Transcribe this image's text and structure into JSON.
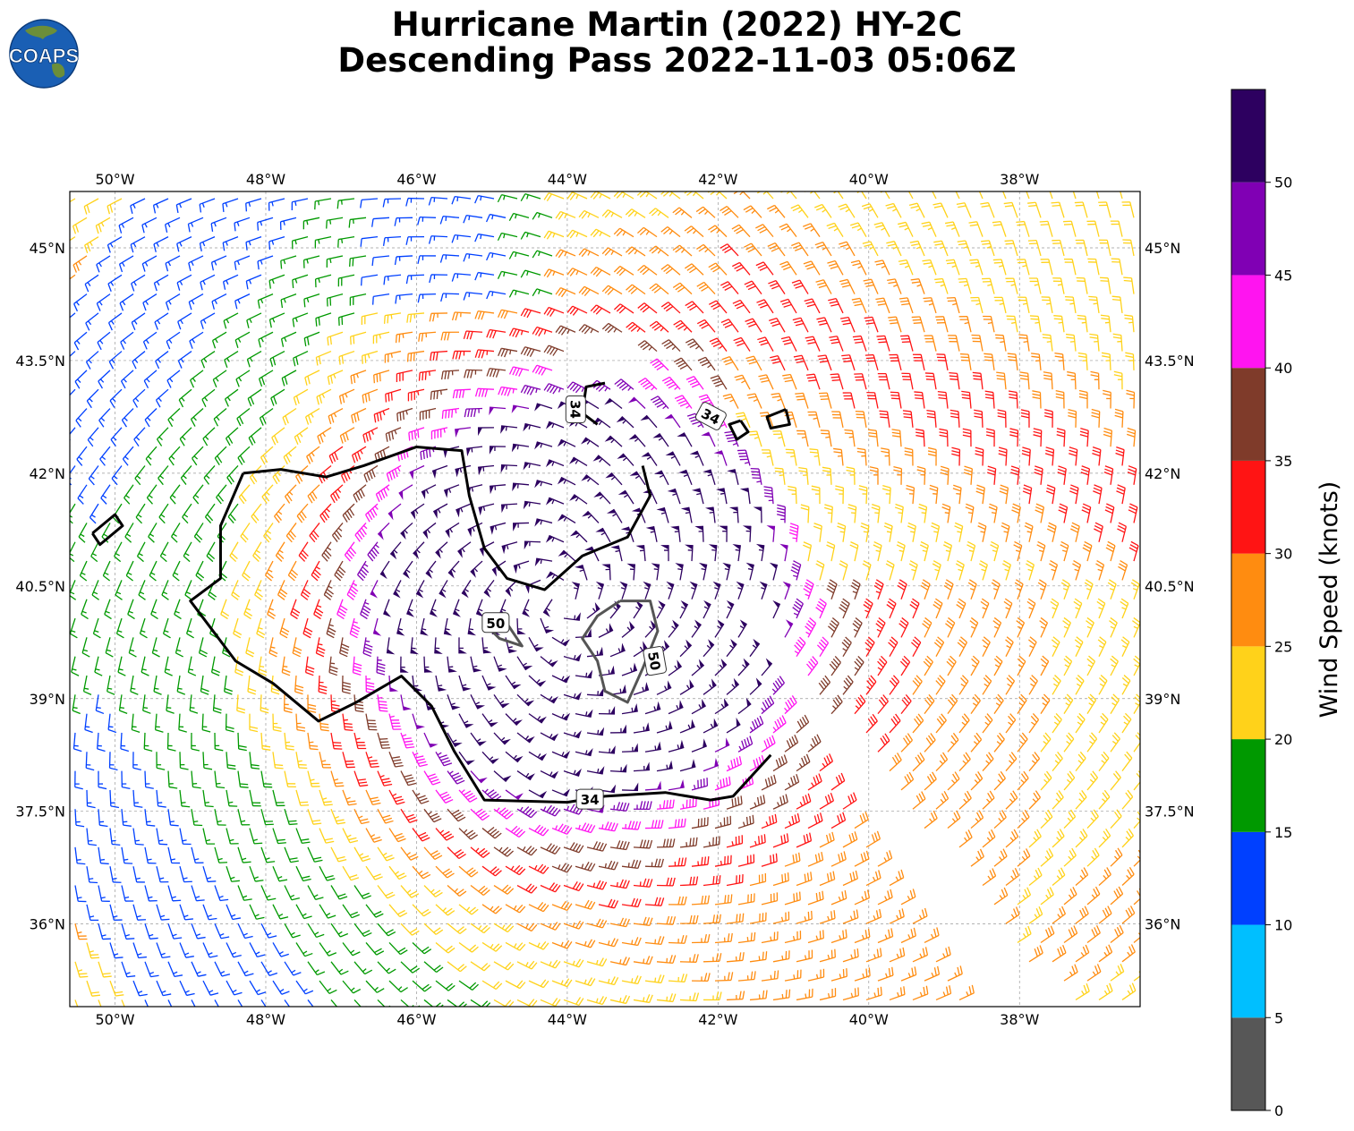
{
  "title": {
    "line1": "Hurricane Martin (2022) HY-2C",
    "line2": "Descending Pass 2022-11-03 05:06Z"
  },
  "logo": {
    "text": "COAPS",
    "icon": "globe-logo-icon",
    "colors": {
      "ocean": "#1a5fb4",
      "land": "#6b8e3a",
      "text": "#ffffff"
    }
  },
  "map": {
    "lon_range": [
      -50.6,
      -36.4
    ],
    "lat_range": [
      34.9,
      45.75
    ],
    "gridlines": true,
    "lon_ticks": [
      {
        "value": -50,
        "label": "50°W"
      },
      {
        "value": -48,
        "label": "48°W"
      },
      {
        "value": -46,
        "label": "46°W"
      },
      {
        "value": -44,
        "label": "44°W"
      },
      {
        "value": -42,
        "label": "42°W"
      },
      {
        "value": -40,
        "label": "40°W"
      },
      {
        "value": -38,
        "label": "38°W"
      }
    ],
    "lat_ticks": [
      {
        "value": 45,
        "label": "45°N"
      },
      {
        "value": 43.5,
        "label": "43.5°N"
      },
      {
        "value": 42,
        "label": "42°N"
      },
      {
        "value": 40.5,
        "label": "40.5°N"
      },
      {
        "value": 39,
        "label": "39°N"
      },
      {
        "value": 37.5,
        "label": "37.5°N"
      },
      {
        "value": 36,
        "label": "36°N"
      }
    ],
    "storm_center": {
      "lon": -44.1,
      "lat": 40.3
    },
    "contours": [
      {
        "level": 34,
        "color": "#000000",
        "label": "34",
        "path": [
          [
            -48.3,
            42.0
          ],
          [
            -47.8,
            42.05
          ],
          [
            -47.2,
            41.95
          ],
          [
            -46.7,
            42.1
          ],
          [
            -46.0,
            42.35
          ],
          [
            -45.4,
            42.3
          ],
          [
            -45.3,
            41.7
          ],
          [
            -45.1,
            41.0
          ],
          [
            -44.8,
            40.6
          ],
          [
            -44.3,
            40.45
          ],
          [
            -43.8,
            40.9
          ],
          [
            -43.2,
            41.15
          ],
          [
            -42.9,
            41.7
          ],
          [
            -43.0,
            42.1
          ]
        ]
      },
      {
        "level": 34,
        "color": "#000000",
        "label": "34",
        "path": [
          [
            -48.3,
            42.0
          ],
          [
            -48.6,
            41.3
          ],
          [
            -48.6,
            40.6
          ],
          [
            -49.0,
            40.3
          ],
          [
            -48.7,
            39.9
          ],
          [
            -48.4,
            39.5
          ],
          [
            -47.9,
            39.2
          ],
          [
            -47.3,
            38.7
          ],
          [
            -46.8,
            38.95
          ],
          [
            -46.2,
            39.3
          ],
          [
            -45.8,
            38.9
          ],
          [
            -45.5,
            38.3
          ],
          [
            -45.1,
            37.65
          ],
          [
            -44.0,
            37.62
          ],
          [
            -43.5,
            37.7
          ],
          [
            -42.7,
            37.75
          ],
          [
            -42.1,
            37.65
          ],
          [
            -41.8,
            37.7
          ],
          [
            -41.3,
            38.25
          ]
        ]
      },
      {
        "level": 34,
        "color": "#000000",
        "label": "",
        "path": [
          [
            -50.3,
            41.2
          ],
          [
            -50.0,
            41.45
          ],
          [
            -49.9,
            41.3
          ],
          [
            -50.2,
            41.05
          ],
          [
            -50.3,
            41.2
          ]
        ]
      },
      {
        "level": 34,
        "color": "#000000",
        "label": "34",
        "path": [
          [
            -43.5,
            43.2
          ],
          [
            -43.75,
            43.15
          ],
          [
            -43.8,
            42.8
          ],
          [
            -43.6,
            42.65
          ]
        ]
      },
      {
        "level": 34,
        "color": "#000000",
        "label": "",
        "path": [
          [
            -41.7,
            42.7
          ],
          [
            -41.85,
            42.65
          ],
          [
            -41.75,
            42.45
          ],
          [
            -41.6,
            42.55
          ],
          [
            -41.7,
            42.7
          ]
        ]
      },
      {
        "level": 34,
        "color": "#000000",
        "label": "",
        "path": [
          [
            -41.1,
            42.85
          ],
          [
            -41.35,
            42.75
          ],
          [
            -41.3,
            42.6
          ],
          [
            -41.05,
            42.65
          ],
          [
            -41.1,
            42.85
          ]
        ]
      },
      {
        "level": 50,
        "color": "#555555",
        "label": "50",
        "path": [
          [
            -45.1,
            40.0
          ],
          [
            -44.8,
            40.0
          ],
          [
            -44.6,
            39.7
          ],
          [
            -44.9,
            39.8
          ],
          [
            -45.1,
            40.0
          ]
        ]
      },
      {
        "level": 50,
        "color": "#555555",
        "label": "50",
        "path": [
          [
            -43.3,
            40.3
          ],
          [
            -42.9,
            40.3
          ],
          [
            -42.8,
            39.9
          ],
          [
            -43.0,
            39.4
          ],
          [
            -43.2,
            38.95
          ],
          [
            -43.5,
            39.1
          ],
          [
            -43.6,
            39.5
          ],
          [
            -43.8,
            39.8
          ],
          [
            -43.6,
            40.1
          ],
          [
            -43.3,
            40.3
          ]
        ]
      }
    ],
    "contour_labels": [
      {
        "text": "34",
        "lon": -43.9,
        "lat": 42.85,
        "angle": 90
      },
      {
        "text": "34",
        "lon": -42.1,
        "lat": 42.75,
        "angle": 28
      },
      {
        "text": "34",
        "lon": -43.7,
        "lat": 37.65,
        "angle": 0
      },
      {
        "text": "50",
        "lon": -44.95,
        "lat": 40.0,
        "angle": 0
      },
      {
        "text": "50",
        "lon": -42.85,
        "lat": 39.5,
        "angle": 80
      }
    ]
  },
  "colorbar": {
    "label": "Wind Speed (knots)",
    "range": [
      0,
      55
    ],
    "ticks": [
      "0",
      "5",
      "10",
      "15",
      "20",
      "25",
      "30",
      "35",
      "40",
      "45",
      "50"
    ],
    "bins": [
      {
        "min": 0,
        "max": 5,
        "color": "#575757"
      },
      {
        "min": 5,
        "max": 10,
        "color": "#00bfff"
      },
      {
        "min": 10,
        "max": 15,
        "color": "#0040ff"
      },
      {
        "min": 15,
        "max": 20,
        "color": "#009900"
      },
      {
        "min": 20,
        "max": 25,
        "color": "#ffd21a"
      },
      {
        "min": 25,
        "max": 30,
        "color": "#ff8c10"
      },
      {
        "min": 30,
        "max": 35,
        "color": "#ff1414"
      },
      {
        "min": 35,
        "max": 40,
        "color": "#7f3b2a"
      },
      {
        "min": 40,
        "max": 45,
        "color": "#ff14f0"
      },
      {
        "min": 45,
        "max": 50,
        "color": "#8000b4"
      },
      {
        "min": 50,
        "max": 55,
        "color": "#2d0060"
      }
    ]
  }
}
